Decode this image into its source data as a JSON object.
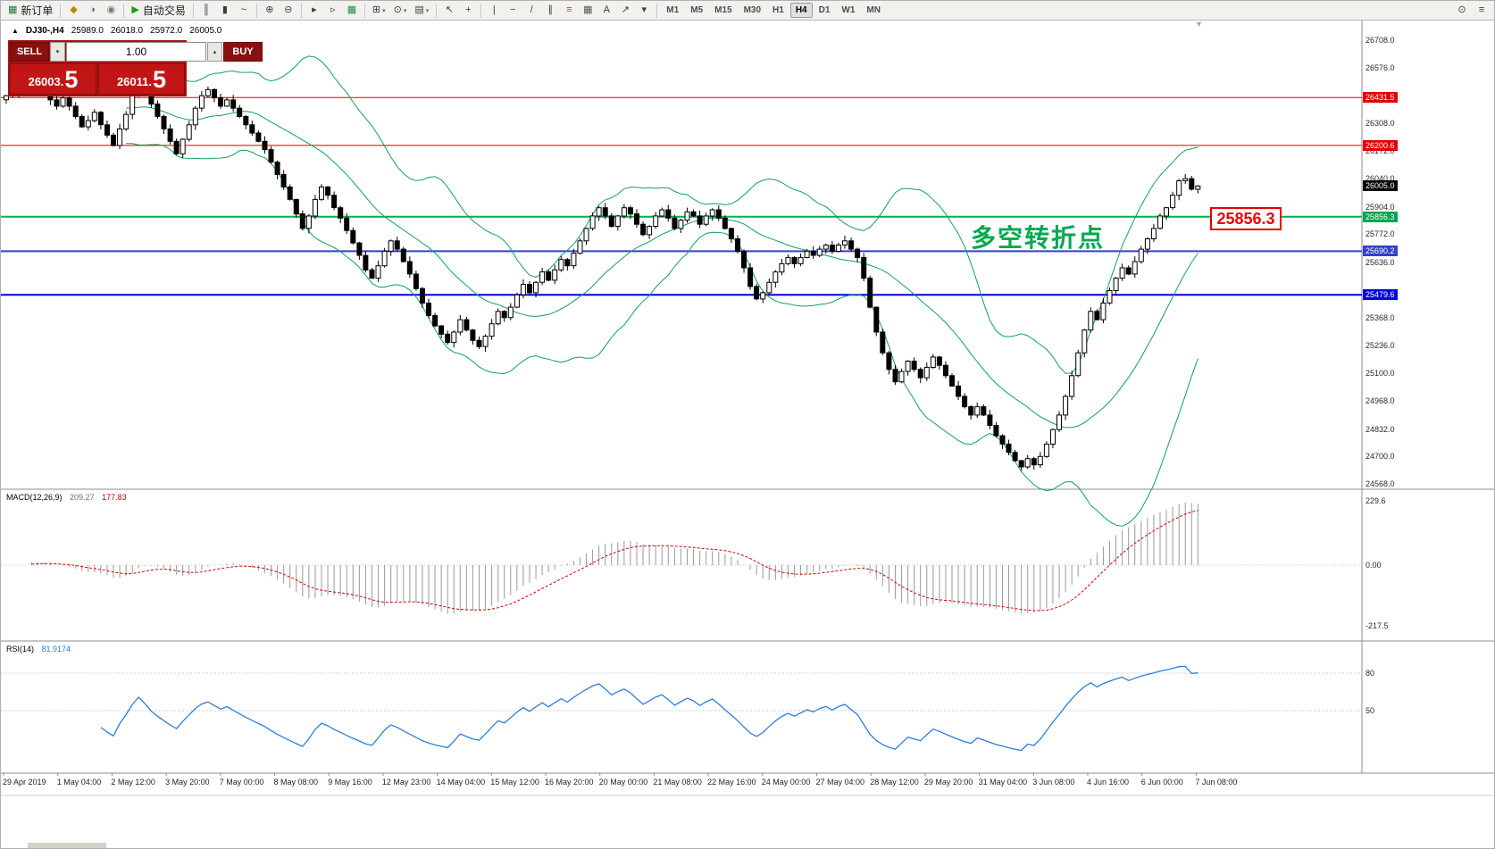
{
  "toolbar": {
    "dropdown_glyph": "▾",
    "items": [
      {
        "n": "new-order-button",
        "g": "▦",
        "c": "#1f7a33",
        "l": "新订单"
      },
      {
        "sep": true
      },
      {
        "n": "market-watch-icon",
        "g": "◆",
        "c": "#b08c00"
      },
      {
        "n": "data-window-icon",
        "g": "◑",
        "c": "#3a6ea5"
      },
      {
        "n": "terminal-icon",
        "g": "◉",
        "c": "#777777"
      },
      {
        "sep": true
      },
      {
        "n": "auto-trading-button",
        "g": "▶",
        "c": "#14a014",
        "l": "自动交易"
      },
      {
        "sep": true
      },
      {
        "n": "bar-chart-icon",
        "g": "║"
      },
      {
        "n": "candlestick-icon",
        "g": "▮"
      },
      {
        "n": "line-chart-icon",
        "g": "~"
      },
      {
        "sep": true
      },
      {
        "n": "zoom-in-icon",
        "g": "⊕"
      },
      {
        "n": "zoom-out-icon",
        "g": "⊖"
      },
      {
        "sep": true
      },
      {
        "n": "auto-scroll-icon",
        "g": "▸"
      },
      {
        "n": "chart-shift-icon",
        "g": "▹"
      },
      {
        "n": "indicators-icon",
        "g": "▦",
        "c": "#1f8a3f"
      },
      {
        "sep": true
      },
      {
        "n": "new-chart-icon",
        "g": "⊞",
        "dd": true
      },
      {
        "n": "profiles-icon",
        "g": "⊙",
        "dd": true
      },
      {
        "n": "templates-icon",
        "g": "▤",
        "dd": true
      },
      {
        "sep": true
      },
      {
        "n": "cursor-icon",
        "g": "↖"
      },
      {
        "n": "crosshair-icon",
        "g": "+"
      },
      {
        "sep": true
      },
      {
        "n": "vertical-line-icon",
        "g": "|"
      },
      {
        "n": "horizontal-line-icon",
        "g": "−"
      },
      {
        "n": "trendline-icon",
        "g": "/"
      },
      {
        "n": "equidistant-channel-icon",
        "g": "∥"
      },
      {
        "n": "fibonacci-icon",
        "g": "≡",
        "c": "#b05a00"
      },
      {
        "n": "shapes-icon",
        "g": "▦",
        "c": "#555555"
      },
      {
        "n": "text-label-icon",
        "g": "A"
      },
      {
        "n": "arrows-icon",
        "g": "↗"
      },
      {
        "n": "drawing-tools-dropdown",
        "g": "▾",
        "dd": false
      },
      {
        "sep": true
      }
    ],
    "timeframes": [
      "M1",
      "M5",
      "M15",
      "M30",
      "H1",
      "H4",
      "D1",
      "W1",
      "MN"
    ],
    "active_timeframe": "H4",
    "right_items": [
      {
        "n": "search-icon",
        "g": "⊙"
      },
      {
        "n": "menu-icon",
        "g": "≡"
      }
    ]
  },
  "chart_header": {
    "collapse_icon": "▲",
    "symbol": "DJ30-,H4",
    "open": "25989.0",
    "high": "26018.0",
    "low": "25972.0",
    "close": "26005.0"
  },
  "quote_panel": {
    "sell_label": "SELL",
    "buy_label": "BUY",
    "volume": "1.00",
    "spin_down_icon": "▾",
    "spin_up_icon": "▴",
    "sell_price_small": "26003.",
    "sell_price_big": "5",
    "buy_price_small": "26011.",
    "buy_price_big": "5"
  },
  "annotations": {
    "turning_point_text": "多空转折点",
    "turning_point_color": "#00A84F",
    "price_callout": "25856.3"
  },
  "price_axis": {
    "ticks": [
      {
        "v": 26708,
        "t": "26708.0"
      },
      {
        "v": 26576,
        "t": "26576.0"
      },
      {
        "v": 26308,
        "t": "26308.0"
      },
      {
        "v": 26172,
        "t": "26172.0"
      },
      {
        "v": 26040,
        "t": "26040.0"
      },
      {
        "v": 25904,
        "t": "25904.0"
      },
      {
        "v": 25772,
        "t": "25772.0"
      },
      {
        "v": 25636,
        "t": "25636.0"
      },
      {
        "v": 25368,
        "t": "25368.0"
      },
      {
        "v": 25236,
        "t": "25236.0"
      },
      {
        "v": 25100,
        "t": "25100.0"
      },
      {
        "v": 24968,
        "t": "24968.0"
      },
      {
        "v": 24832,
        "t": "24832.0"
      },
      {
        "v": 24700,
        "t": "24700.0"
      },
      {
        "v": 24568,
        "t": "24568.0"
      }
    ],
    "labels": [
      {
        "v": 26431.5,
        "t": "26431.5",
        "bg": "#E10000"
      },
      {
        "v": 26200.6,
        "t": "26200.6",
        "bg": "#E10000"
      },
      {
        "v": 26005.0,
        "t": "26005.0",
        "bg": "#000000"
      },
      {
        "v": 25856.3,
        "t": "25856.3",
        "bg": "#00A550"
      },
      {
        "v": 25690.2,
        "t": "25690.2",
        "bg": "#3340CC"
      },
      {
        "v": 25479.6,
        "t": "25479.6",
        "bg": "#0000E6"
      }
    ]
  },
  "chart_data": {
    "type": "candlestick+indicators",
    "symbol": "DJ30-",
    "timeframe": "H4",
    "current_ohlc": {
      "open": 25989.0,
      "high": 26018.0,
      "low": 25972.0,
      "close": 26005.0
    },
    "price_range": [
      24568,
      26708
    ],
    "first_open": 26420,
    "closes": [
      26440,
      26470,
      26455,
      26490,
      26510,
      26480,
      26450,
      26420,
      26390,
      26430,
      26390,
      26340,
      26290,
      26320,
      26360,
      26300,
      26250,
      26200,
      26280,
      26350,
      26450,
      26540,
      26480,
      26400,
      26340,
      26280,
      26220,
      26160,
      26230,
      26300,
      26380,
      26440,
      26470,
      26430,
      26390,
      26420,
      26380,
      26340,
      26300,
      26260,
      26220,
      26180,
      26120,
      26060,
      26000,
      25940,
      25870,
      25800,
      25860,
      25940,
      26000,
      25960,
      25900,
      25850,
      25790,
      25730,
      25670,
      25600,
      25560,
      25620,
      25690,
      25740,
      25700,
      25640,
      25580,
      25510,
      25440,
      25380,
      25330,
      25290,
      25250,
      25300,
      25360,
      25310,
      25260,
      25230,
      25280,
      25340,
      25400,
      25370,
      25420,
      25480,
      25530,
      25490,
      25540,
      25590,
      25550,
      25600,
      25650,
      25620,
      25680,
      25740,
      25800,
      25860,
      25900,
      25860,
      25810,
      25860,
      25900,
      25870,
      25820,
      25770,
      25810,
      25860,
      25890,
      25850,
      25800,
      25840,
      25880,
      25860,
      25820,
      25860,
      25890,
      25850,
      25800,
      25750,
      25690,
      25610,
      25520,
      25460,
      25490,
      25540,
      25590,
      25630,
      25660,
      25630,
      25660,
      25690,
      25670,
      25700,
      25720,
      25690,
      25720,
      25740,
      25700,
      25660,
      25560,
      25420,
      25300,
      25200,
      25120,
      25060,
      25110,
      25160,
      25120,
      25080,
      25130,
      25180,
      25140,
      25090,
      25040,
      24990,
      24940,
      24900,
      24940,
      24900,
      24850,
      24800,
      24760,
      24720,
      24680,
      24650,
      24690,
      24660,
      24700,
      24760,
      24830,
      24900,
      24990,
      25090,
      25200,
      25310,
      25400,
      25360,
      25440,
      25500,
      25560,
      25610,
      25580,
      25640,
      25700,
      25750,
      25800,
      25860,
      25900,
      25960,
      26030,
      26040,
      25989,
      26005
    ],
    "bollinger": {
      "period": 20,
      "deviation": 2,
      "color": "#12A05F"
    },
    "levels": [
      {
        "price": 26431.5,
        "color": "#E10000",
        "width": 1
      },
      {
        "price": 26200.6,
        "color": "#D40000",
        "width": 1
      },
      {
        "price": 25856.3,
        "color": "#00B050",
        "width": 2
      },
      {
        "price": 25690.2,
        "color": "#3340CC",
        "width": 2
      },
      {
        "price": 25479.6,
        "color": "#0000EE",
        "width": 2
      }
    ],
    "macd": {
      "label": "MACD(12,26,9)",
      "main_value": "209.27",
      "signal_value": "177.83",
      "params": [
        12,
        26,
        9
      ],
      "axis_ticks": [
        {
          "v": 229.6,
          "t": "229.6"
        },
        {
          "v": 0,
          "t": "0.00"
        },
        {
          "v": -217.5,
          "t": "-217.5"
        }
      ],
      "histogram_color": "#9a9a9a",
      "signal_color": "#d40000"
    },
    "rsi": {
      "label": "RSI(14)",
      "value": "81.9174",
      "period": 14,
      "levels": [
        80,
        50
      ],
      "axis_ticks": [
        {
          "v": 80,
          "t": "80"
        },
        {
          "v": 50,
          "t": "50"
        }
      ],
      "line_color": "#2F7ED8"
    },
    "time_labels": [
      "29 Apr 2019",
      "1 May 04:00",
      "2 May 12:00",
      "3 May 20:00",
      "7 May 00:00",
      "8 May 08:00",
      "9 May 16:00",
      "12 May 23:00",
      "14 May 04:00",
      "15 May 12:00",
      "16 May 20:00",
      "20 May 00:00",
      "21 May 08:00",
      "22 May 16:00",
      "24 May 00:00",
      "27 May 04:00",
      "28 May 12:00",
      "29 May 20:00",
      "31 May 04:00",
      "3 Jun 08:00",
      "4 Jun 16:00",
      "6 Jun 00:00",
      "7 Jun 08:00"
    ]
  }
}
